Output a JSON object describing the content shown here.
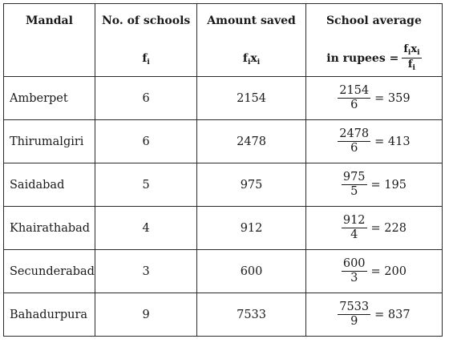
{
  "headers": {
    "mandal": "Mandal",
    "schools": "No. of schools",
    "schools_sym": "f",
    "schools_sub": "i",
    "amount": "Amount saved",
    "amount_sym1": "f",
    "amount_sub1": "i",
    "amount_sym2": "x",
    "amount_sub2": "i",
    "average": "School average",
    "average_prefix": "in rupees =",
    "average_num": "f",
    "average_num_sub1": "i",
    "average_num_x": "x",
    "average_num_sub2": "i",
    "average_den": "f",
    "average_den_sub": "i"
  },
  "rows": [
    {
      "mandal": "Amberpet",
      "schools": "6",
      "amount": "2154",
      "num": "2154",
      "den": "6",
      "avg": "= 359"
    },
    {
      "mandal": "Thirumalgiri",
      "schools": "6",
      "amount": "2478",
      "num": "2478",
      "den": "6",
      "avg": "= 413"
    },
    {
      "mandal": "Saidabad",
      "schools": "5",
      "amount": "975",
      "num": "975",
      "den": "5",
      "avg": "= 195"
    },
    {
      "mandal": "Khairathabad",
      "schools": "4",
      "amount": "912",
      "num": "912",
      "den": "4",
      "avg": "= 228"
    },
    {
      "mandal": "Secunderabad",
      "schools": "3",
      "amount": "600",
      "num": "600",
      "den": "3",
      "avg": "= 200"
    },
    {
      "mandal": "Bahadurpura",
      "schools": "9",
      "amount": "7533",
      "num": "7533",
      "den": "9",
      "avg": "= 837"
    }
  ]
}
